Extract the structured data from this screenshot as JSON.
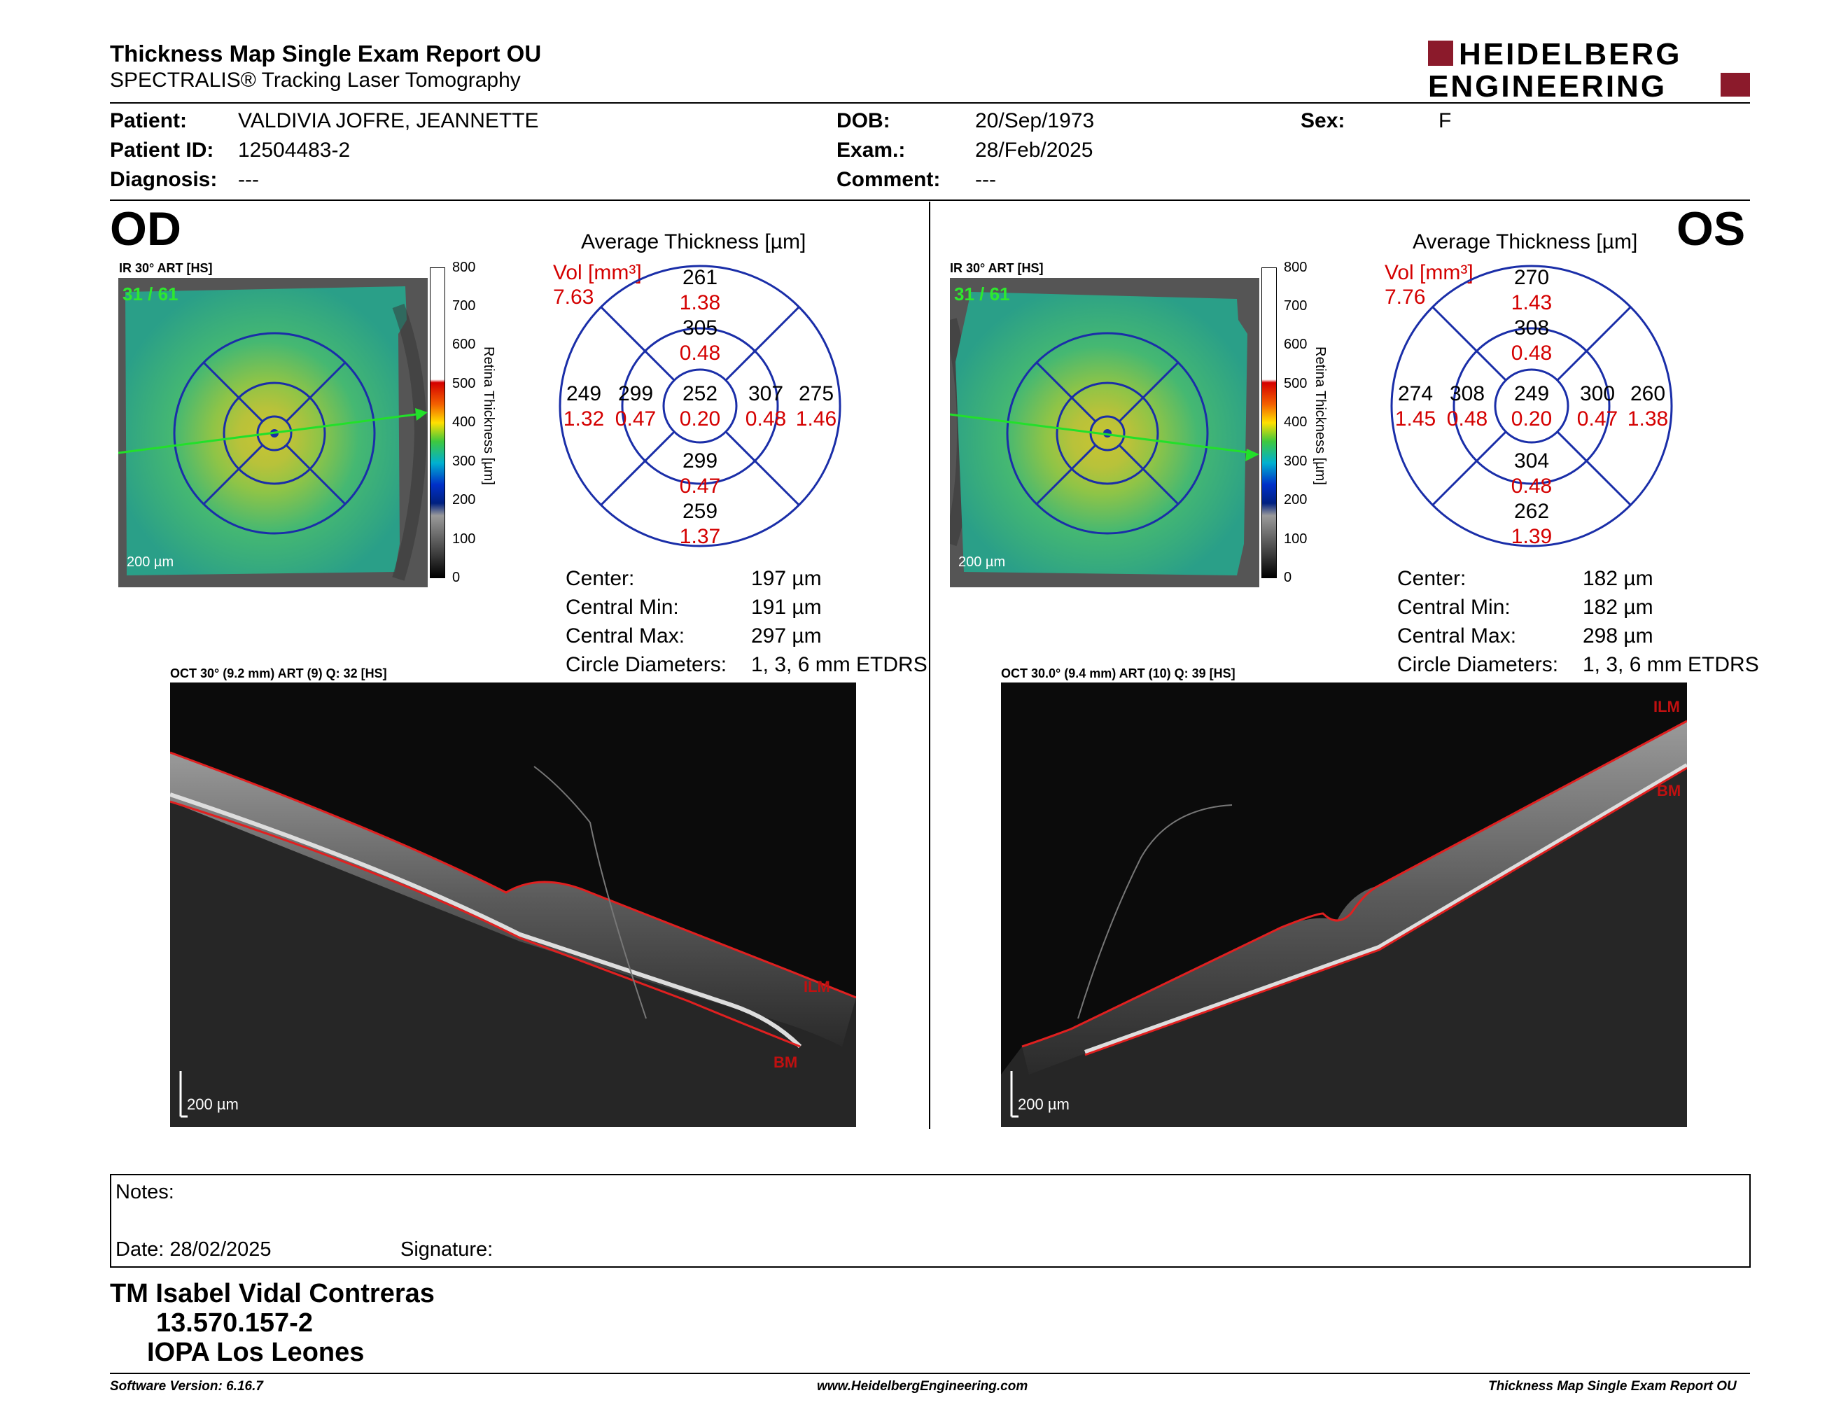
{
  "header": {
    "title": "Thickness Map Single Exam Report OU",
    "subtitle": "SPECTRALIS® Tracking Laser Tomography",
    "logo_line1": "HEIDELBERG",
    "logo_line2": "ENGINEERING",
    "brand_color": "#8b1a2b"
  },
  "patient": {
    "patient_label": "Patient:",
    "patient_value": "VALDIVIA JOFRE, JEANNETTE",
    "id_label": "Patient ID:",
    "id_value": "12504483-2",
    "diagnosis_label": "Diagnosis:",
    "diagnosis_value": "---",
    "dob_label": "DOB:",
    "dob_value": "20/Sep/1973",
    "exam_label": "Exam.:",
    "exam_value": "28/Feb/2025",
    "comment_label": "Comment:",
    "comment_value": "---",
    "sex_label": "Sex:",
    "sex_value": "F"
  },
  "od": {
    "eye": "OD",
    "ir_label": "IR 30° ART [HS]",
    "frame": "31 / 61",
    "scale_bar": "200 µm",
    "color_scale": {
      "ticks": [
        "800",
        "700",
        "600",
        "500",
        "400",
        "300",
        "200",
        "100",
        "0"
      ],
      "title": "Retina  Thickness [µm]"
    },
    "avg_title": "Average Thickness [µm]",
    "vol_label": "Vol [mm³]",
    "vol_value": "7.63",
    "grid": {
      "outer_superior": "261",
      "outer_superior_vol": "1.38",
      "inner_superior": "305",
      "inner_superior_vol": "0.48",
      "outer_left": "249",
      "outer_left_vol": "1.32",
      "inner_left": "299",
      "inner_left_vol": "0.47",
      "center": "252",
      "center_vol": "0.20",
      "inner_right": "307",
      "inner_right_vol": "0.48",
      "outer_right": "275",
      "outer_right_vol": "1.46",
      "inner_inferior": "299",
      "inner_inferior_vol": "0.47",
      "outer_inferior": "259",
      "outer_inferior_vol": "1.37"
    },
    "stats": {
      "center_label": "Center:",
      "center_value": "197 µm",
      "min_label": "Central Min:",
      "min_value": "191 µm",
      "max_label": "Central Max:",
      "max_value": "297 µm",
      "diam_label": "Circle Diameters:",
      "diam_value": "1, 3, 6 mm ETDRS"
    },
    "oct_label": "OCT 30° (9.2 mm) ART (9) Q: 32 [HS]",
    "ilm": "ILM",
    "bm": "BM",
    "oct_scale": "200 µm"
  },
  "os": {
    "eye": "OS",
    "ir_label": "IR 30° ART [HS]",
    "frame": "31 / 61",
    "scale_bar": "200 µm",
    "color_scale": {
      "ticks": [
        "800",
        "700",
        "600",
        "500",
        "400",
        "300",
        "200",
        "100",
        "0"
      ],
      "title": "Retina  Thickness [µm]"
    },
    "avg_title": "Average Thickness [µm]",
    "vol_label": "Vol [mm³]",
    "vol_value": "7.76",
    "grid": {
      "outer_superior": "270",
      "outer_superior_vol": "1.43",
      "inner_superior": "308",
      "inner_superior_vol": "0.48",
      "outer_left": "274",
      "outer_left_vol": "1.45",
      "inner_left": "308",
      "inner_left_vol": "0.48",
      "center": "249",
      "center_vol": "0.20",
      "inner_right": "300",
      "inner_right_vol": "0.47",
      "outer_right": "260",
      "outer_right_vol": "1.38",
      "inner_inferior": "304",
      "inner_inferior_vol": "0.48",
      "outer_inferior": "262",
      "outer_inferior_vol": "1.39"
    },
    "stats": {
      "center_label": "Center:",
      "center_value": "182 µm",
      "min_label": "Central Min:",
      "min_value": "182 µm",
      "max_label": "Central Max:",
      "max_value": "298 µm",
      "diam_label": "Circle Diameters:",
      "diam_value": "1, 3, 6 mm ETDRS"
    },
    "oct_label": "OCT 30.0° (9.4 mm) ART (10) Q: 39 [HS]",
    "ilm": "ILM",
    "bm": "BM",
    "oct_scale": "200 µm"
  },
  "notes": {
    "notes_label": "Notes:",
    "date_label": "Date: 28/02/2025",
    "signature_label": "Signature:"
  },
  "signer": {
    "name": "TM Isabel Vidal Contreras",
    "rut": "13.570.157-2",
    "institution": "IOPA Los Leones"
  },
  "footer": {
    "software": "Software Version: 6.16.7",
    "website": "www.HeidelbergEngineering.com",
    "report": "Thickness Map Single Exam Report OU"
  }
}
